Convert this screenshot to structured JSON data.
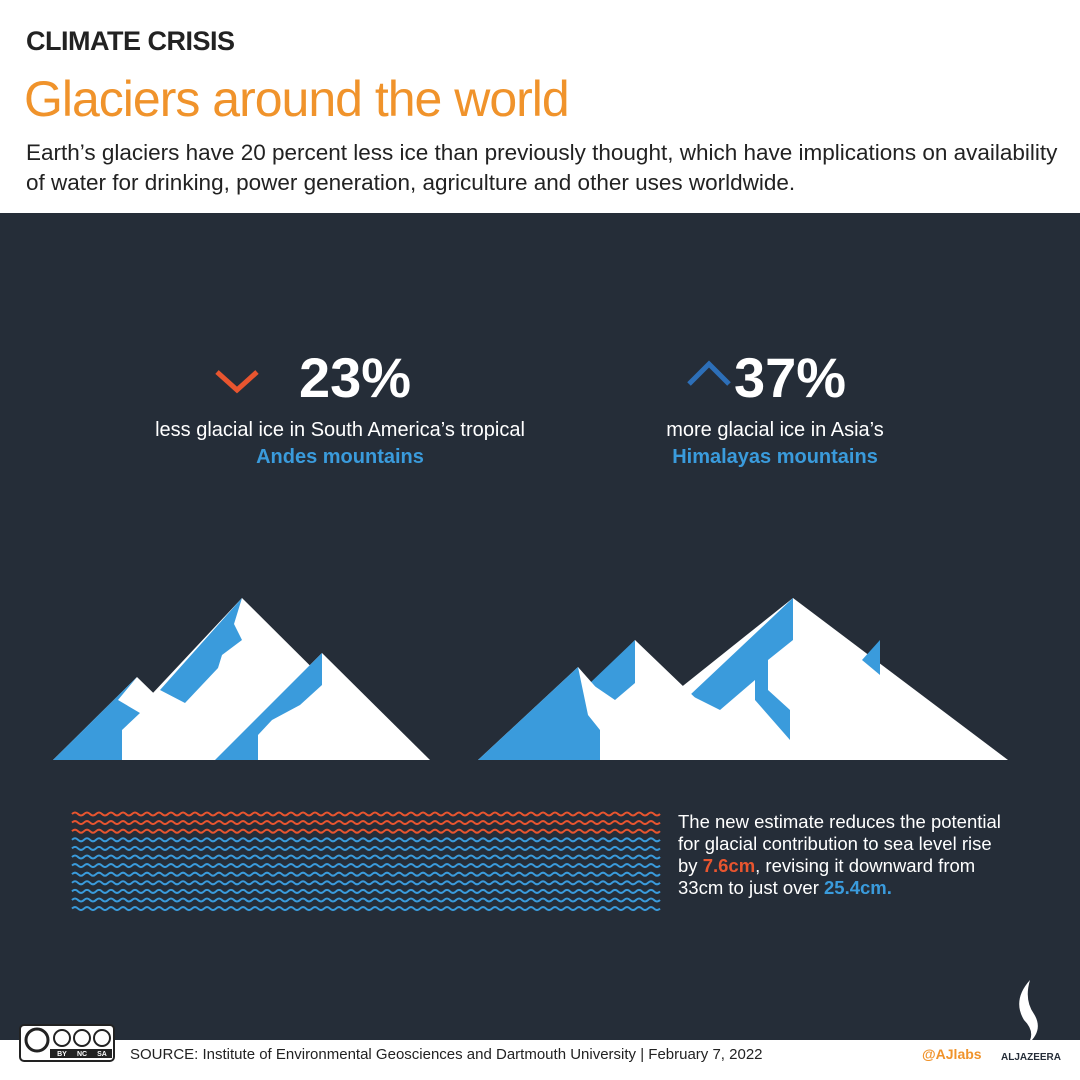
{
  "header": {
    "kicker": "CLIMATE CRISIS",
    "title": "Glaciers around the world",
    "description": "Earth’s glaciers have 20 percent less ice than previously thought, which have implications on availability of water for drinking, power generation, agriculture and other uses worldwide."
  },
  "stats": [
    {
      "value": "23%",
      "text": "less glacial ice in South America’s tropical",
      "highlight": "Andes mountains"
    },
    {
      "value": "37%",
      "text": "more glacial ice in Asia’s",
      "highlight": "Himalayas mountains"
    }
  ],
  "note": [
    "The new estimate reduces the potential for glacial contribution to sea level rise by ",
    "7.6cm",
    ", revising it downward from 33cm to just over ",
    "25.4cm."
  ],
  "footer": {
    "source": "SOURCE: Institute of Environmental Geosciences and Dartmouth University  |  February 7, 2022",
    "license": [
      "BY",
      "NC",
      "SA"
    ],
    "handle": "@AJlabs",
    "brand": "ALJAZEERA"
  }
}
